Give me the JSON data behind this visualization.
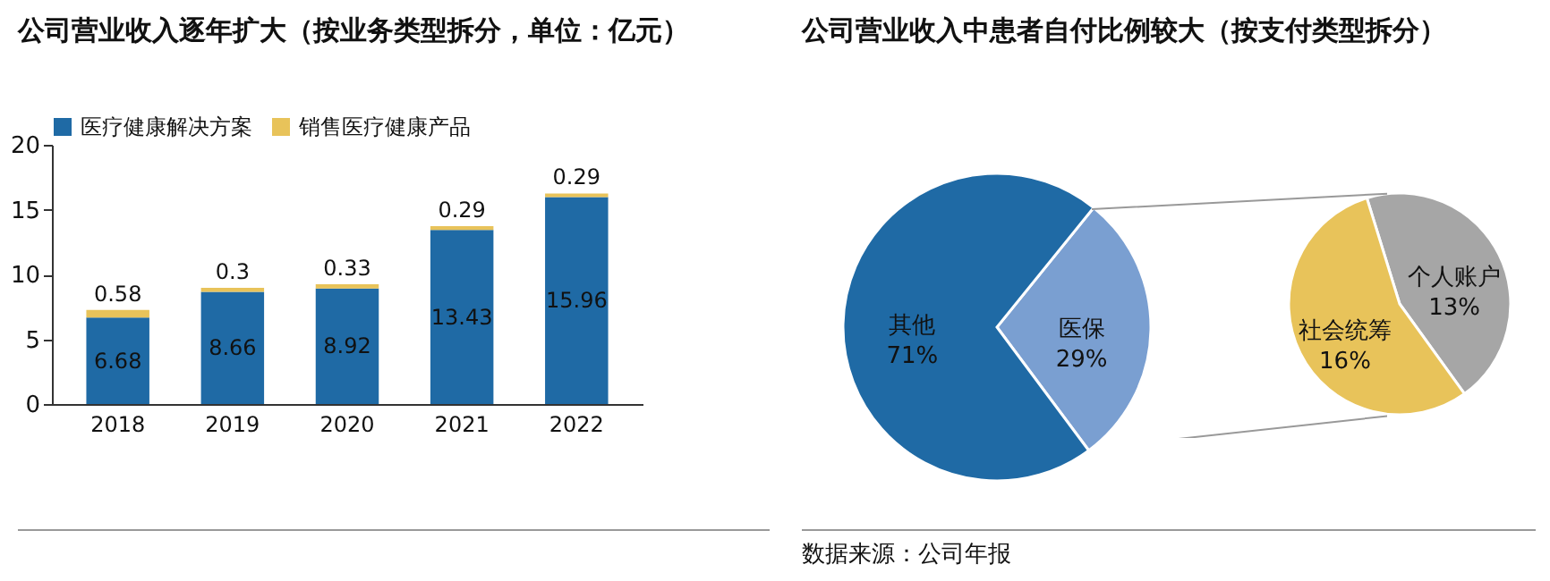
{
  "chart_data": [
    {
      "type": "bar",
      "title": "公司营业收入逐年扩大（按业务类型拆分，单位：亿元）",
      "categories": [
        "2018",
        "2019",
        "2020",
        "2021",
        "2022"
      ],
      "stacked": true,
      "data_labels": true,
      "legend": "top",
      "ylim": [
        0,
        20
      ],
      "yticks": [
        0,
        5,
        10,
        15,
        20
      ],
      "series": [
        {
          "name": "医疗健康解决方案",
          "color": "#1f6aa5",
          "values": [
            6.68,
            8.66,
            8.92,
            13.43,
            15.96
          ]
        },
        {
          "name": "销售医疗健康产品",
          "color": "#e8c35a",
          "values": [
            0.58,
            0.3,
            0.33,
            0.29,
            0.29
          ]
        }
      ]
    },
    {
      "type": "pie",
      "title": "公司营业收入中患者自付比例较大（按支付类型拆分）",
      "annotations": [
        "数据来源：公司年报"
      ],
      "categories": [
        "医保",
        "其他"
      ],
      "values": [
        29,
        71
      ],
      "value_labels": [
        "29%",
        "71%"
      ],
      "colors": [
        "#7a9fd1",
        "#1f6aa5"
      ]
    },
    {
      "type": "pie",
      "categories": [
        "个人账户",
        "社会统筹"
      ],
      "values": [
        13,
        16
      ],
      "value_labels": [
        "13%",
        "16%"
      ],
      "colors": [
        "#a6a6a6",
        "#e8c35a"
      ]
    }
  ]
}
